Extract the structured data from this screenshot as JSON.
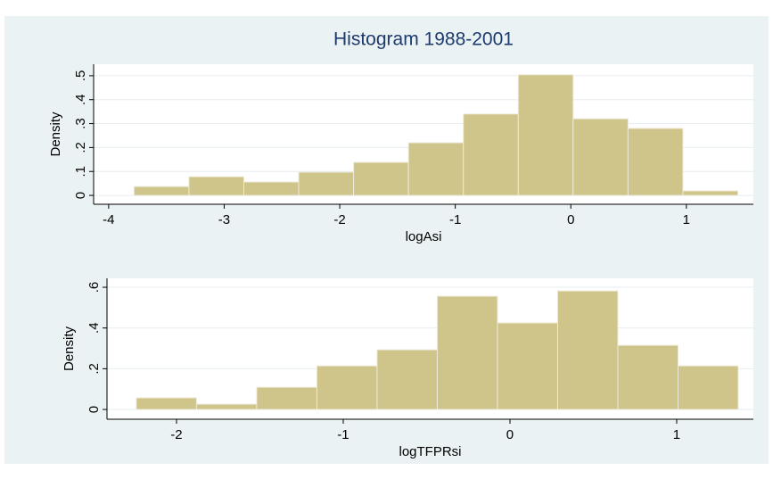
{
  "chart_data": [
    {
      "type": "histogram",
      "title": "Histogram 1988-2001",
      "xlabel": "logAsi",
      "ylabel": "Density",
      "color": "#cfc489",
      "bins": [
        -3.78,
        -3.305,
        -2.83,
        -2.355,
        -1.88,
        -1.405,
        -0.93,
        -0.455,
        0.02,
        0.495,
        0.97,
        1.445
      ],
      "values": [
        0.037,
        0.078,
        0.056,
        0.097,
        0.138,
        0.22,
        0.34,
        0.504,
        0.32,
        0.28,
        0.019
      ],
      "xlim": [
        -4.13,
        1.58
      ],
      "ylim": [
        -0.037,
        0.548
      ],
      "xticks": [
        -4,
        -3,
        -2,
        -1,
        0,
        1
      ],
      "yticks": [
        0,
        {
          "value": 0.1,
          "label": ".1"
        },
        {
          "value": 0.2,
          "label": ".2"
        },
        {
          "value": 0.3,
          "label": ".3"
        },
        {
          "value": 0.4,
          "label": ".4"
        },
        {
          "value": 0.5,
          "label": ".5"
        }
      ],
      "grid": true
    },
    {
      "type": "histogram",
      "xlabel": "logTFPRsi",
      "ylabel": "Density",
      "color": "#cfc489",
      "bins": [
        -2.241,
        -1.88,
        -1.519,
        -1.158,
        -0.797,
        -0.436,
        -0.075,
        0.286,
        0.647,
        1.008,
        1.369
      ],
      "values": [
        0.057,
        0.026,
        0.109,
        0.214,
        0.293,
        0.556,
        0.425,
        0.582,
        0.315,
        0.214
      ],
      "xlim": [
        -2.417,
        1.46
      ],
      "ylim": [
        -0.048,
        0.644
      ],
      "xticks": [
        -2,
        -1,
        0,
        1
      ],
      "yticks": [
        0,
        {
          "value": 0.2,
          "label": ".2"
        },
        {
          "value": 0.4,
          "label": ".4"
        },
        {
          "value": 0.6,
          "label": ".6"
        }
      ],
      "grid": true
    }
  ]
}
